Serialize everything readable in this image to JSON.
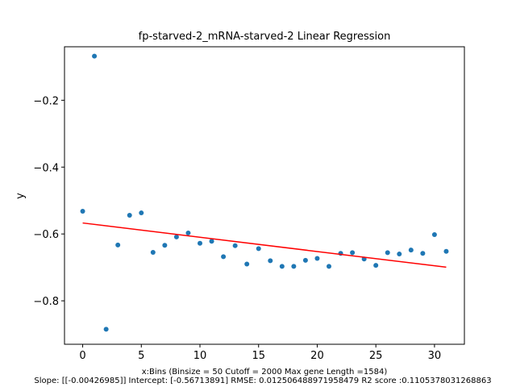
{
  "chart_data": {
    "type": "scatter",
    "title": "fp-starved-2_mRNA-starved-2 Linear Regression",
    "xlabel": "x:Bins  (Binsize = 50 Cutoff = 2000 Max gene Length =1584)",
    "caption": "Slope: [[-0.00426985]] Intercept: [-0.56713891] RMSE: 0.012506488971958479 R2 score :0.1105378031268863",
    "ylabel": "y",
    "xlim": [
      -1.55,
      32.55
    ],
    "ylim": [
      -0.93,
      -0.04
    ],
    "xticks": [
      0,
      5,
      10,
      15,
      20,
      25,
      30
    ],
    "xtick_labels": [
      "0",
      "5",
      "10",
      "15",
      "20",
      "25",
      "30"
    ],
    "yticks": [
      -0.8,
      -0.6,
      -0.4,
      -0.2
    ],
    "ytick_labels": [
      "−0.8",
      "−0.6",
      "−0.4",
      "−0.2"
    ],
    "grid": false,
    "series": [
      {
        "type": "scatter",
        "color": "#1f77b4",
        "x": [
          0,
          1,
          2,
          3,
          4,
          5,
          6,
          7,
          8,
          9,
          10,
          11,
          12,
          13,
          14,
          15,
          16,
          17,
          18,
          19,
          20,
          21,
          22,
          23,
          24,
          25,
          26,
          27,
          28,
          29,
          30,
          31
        ],
        "y": [
          -0.532,
          -0.068,
          -0.885,
          -0.633,
          -0.544,
          -0.537,
          -0.655,
          -0.634,
          -0.609,
          -0.597,
          -0.628,
          -0.622,
          -0.668,
          -0.635,
          -0.69,
          -0.644,
          -0.68,
          -0.697,
          -0.697,
          -0.679,
          -0.673,
          -0.697,
          -0.658,
          -0.656,
          -0.675,
          -0.694,
          -0.656,
          -0.66,
          -0.648,
          -0.658,
          -0.602,
          -0.652
        ]
      },
      {
        "type": "line",
        "color": "#ff0000",
        "x": [
          0,
          31
        ],
        "y": [
          -0.56713891,
          -0.69950426
        ]
      }
    ]
  }
}
